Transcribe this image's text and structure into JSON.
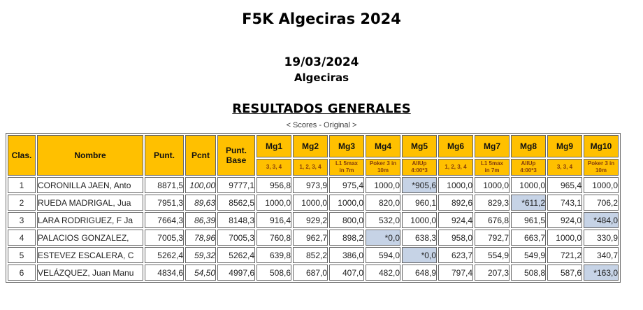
{
  "page": {
    "title": "F5K Algeciras 2024",
    "date": "19/03/2024",
    "location": "Algeciras",
    "section_title": "RESULTADOS GENERALES",
    "subtitle": "< Scores - Original >"
  },
  "colors": {
    "header_bg": "#FFC000",
    "highlight_bg": "#C6D3E6",
    "border": "#666666",
    "subheader_text": "#843C0C"
  },
  "table": {
    "headers": {
      "clas": "Clas.",
      "nombre": "Nombre",
      "punt": "Punt.",
      "pcnt": "Pcnt",
      "punt_base": "Punt.\nBase"
    },
    "mg_columns": [
      {
        "label": "Mg1",
        "sub": "3, 3, 4"
      },
      {
        "label": "Mg2",
        "sub": "1, 2, 3, 4"
      },
      {
        "label": "Mg3",
        "sub": "L1 5max\nin 7m"
      },
      {
        "label": "Mg4",
        "sub": "Poker 3 in\n10m"
      },
      {
        "label": "Mg5",
        "sub": "AllUp\n4:00*3"
      },
      {
        "label": "Mg6",
        "sub": "1, 2, 3, 4"
      },
      {
        "label": "Mg7",
        "sub": "L1 5max\nin 7m"
      },
      {
        "label": "Mg8",
        "sub": "AllUp\n4:00*3"
      },
      {
        "label": "Mg9",
        "sub": "3, 3, 4"
      },
      {
        "label": "Mg10",
        "sub": "Poker 3 in\n10m"
      }
    ],
    "rows": [
      {
        "clas": "1",
        "nombre": "CORONILLA JAEN, Anto",
        "punt": "8871,5",
        "pcnt": "100,00",
        "punt_base": "9777,1",
        "mgs": [
          "956,8",
          "973,9",
          "975,4",
          "1000,0",
          "*905,6",
          "1000,0",
          "1000,0",
          "1000,0",
          "965,4",
          "1000,0"
        ],
        "highlight": 4
      },
      {
        "clas": "2",
        "nombre": "RUEDA MADRIGAL, Jua",
        "punt": "7951,3",
        "pcnt": "89,63",
        "punt_base": "8562,5",
        "mgs": [
          "1000,0",
          "1000,0",
          "1000,0",
          "820,0",
          "960,1",
          "892,6",
          "829,3",
          "*611,2",
          "743,1",
          "706,2"
        ],
        "highlight": 7
      },
      {
        "clas": "3",
        "nombre": "LARA RODRIGUEZ, F Ja",
        "punt": "7664,3",
        "pcnt": "86,39",
        "punt_base": "8148,3",
        "mgs": [
          "916,4",
          "929,2",
          "800,0",
          "532,0",
          "1000,0",
          "924,4",
          "676,8",
          "961,5",
          "924,0",
          "*484,0"
        ],
        "highlight": 9
      },
      {
        "clas": "4",
        "nombre": "PALACIOS GONZALEZ,",
        "punt": "7005,3",
        "pcnt": "78,96",
        "punt_base": "7005,3",
        "mgs": [
          "760,8",
          "962,7",
          "898,2",
          "*0,0",
          "638,3",
          "958,0",
          "792,7",
          "663,7",
          "1000,0",
          "330,9"
        ],
        "highlight": 3
      },
      {
        "clas": "5",
        "nombre": "ESTEVEZ ESCALERA, C",
        "punt": "5262,4",
        "pcnt": "59,32",
        "punt_base": "5262,4",
        "mgs": [
          "639,8",
          "852,2",
          "386,0",
          "594,0",
          "*0,0",
          "623,7",
          "554,9",
          "549,9",
          "721,2",
          "340,7"
        ],
        "highlight": 4
      },
      {
        "clas": "6",
        "nombre": "VELÁZQUEZ, Juan Manu",
        "punt": "4834,6",
        "pcnt": "54,50",
        "punt_base": "4997,6",
        "mgs": [
          "508,6",
          "687,0",
          "407,0",
          "482,0",
          "648,9",
          "797,4",
          "207,3",
          "508,8",
          "587,6",
          "*163,0"
        ],
        "highlight": 9
      }
    ]
  }
}
